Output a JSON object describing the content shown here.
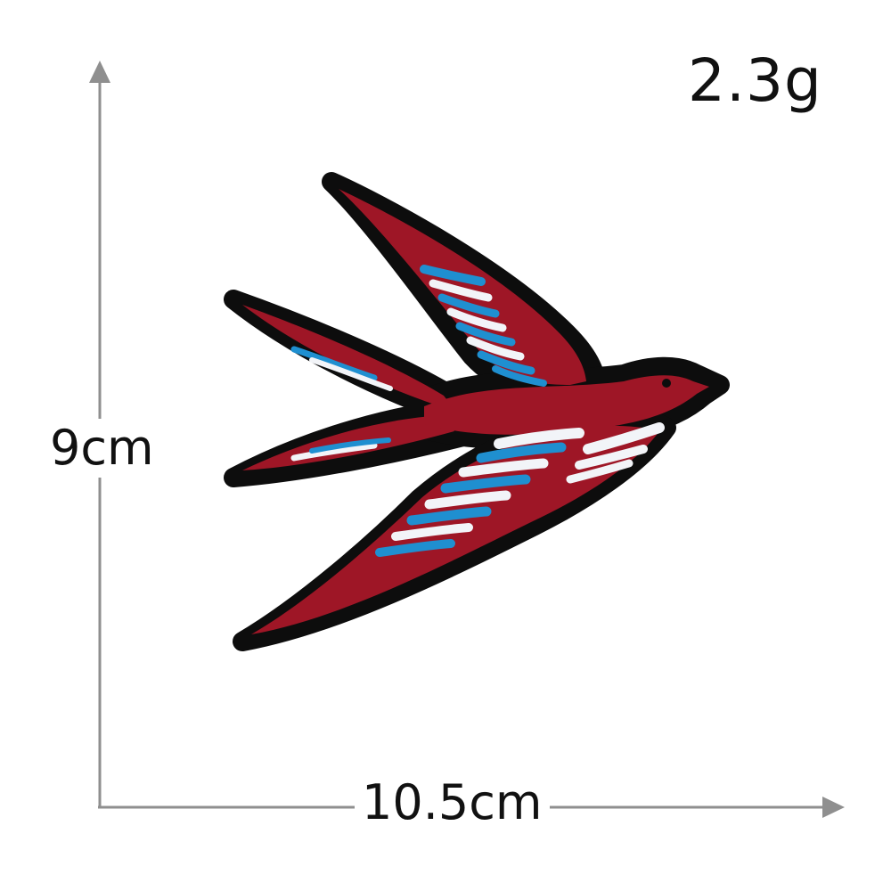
{
  "product": {
    "weight_label": "2.3g",
    "height_label": "9cm",
    "width_label": "10.5cm"
  },
  "colors": {
    "axis": "#8f8f8f",
    "bird_red": "#9e1626",
    "bird_outline": "#0d0d0d",
    "feather_blue": "#1f8fd0",
    "feather_white": "#f2f4f8"
  },
  "icons": {
    "patch": "swallow-bird-icon"
  }
}
